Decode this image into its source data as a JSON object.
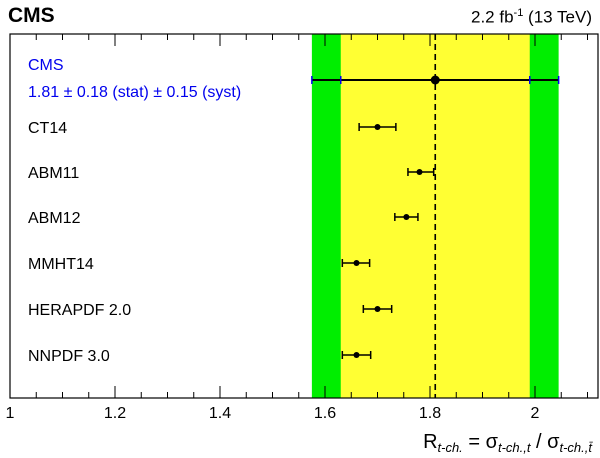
{
  "header": {
    "experiment": "CMS",
    "lumi_value": "2.2 fb",
    "lumi_exp": "-1",
    "energy": " (13 TeV)"
  },
  "chart_data": {
    "type": "scatter",
    "xlim": [
      1.0,
      2.12
    ],
    "x_ticks": [
      "1",
      "1.2",
      "1.4",
      "1.6",
      "1.8",
      "2"
    ],
    "x_tick_values": [
      1.0,
      1.2,
      1.4,
      1.6,
      1.8,
      2.0
    ],
    "xlabel": {
      "R": "R",
      "sub1": "t-ch.",
      "eq": " = σ",
      "sub2": "t-ch.,t",
      "slash": " / σ",
      "sub3": "t-ch.,t̄"
    },
    "measurement": {
      "label": "CMS",
      "text": "1.81 ± 0.18 (stat) ± 0.15 (syst)",
      "value": 1.81,
      "stat": 0.18,
      "syst": 0.15,
      "total": 0.235,
      "band_stat_color": "#ffff33",
      "band_total_color": "#00ee00",
      "color": "#0000ee"
    },
    "predictions": [
      {
        "name": "CT14",
        "value": 1.7,
        "err_low": 0.035,
        "err_high": 0.035
      },
      {
        "name": "ABM11",
        "value": 1.78,
        "err_low": 0.022,
        "err_high": 0.027
      },
      {
        "name": "ABM12",
        "value": 1.755,
        "err_low": 0.022,
        "err_high": 0.022
      },
      {
        "name": "MMHT14",
        "value": 1.66,
        "err_low": 0.027,
        "err_high": 0.025
      },
      {
        "name": "HERAPDF 2.0",
        "value": 1.7,
        "err_low": 0.027,
        "err_high": 0.027
      },
      {
        "name": "NNPDF 3.0",
        "value": 1.66,
        "err_low": 0.027,
        "err_high": 0.027
      }
    ]
  }
}
